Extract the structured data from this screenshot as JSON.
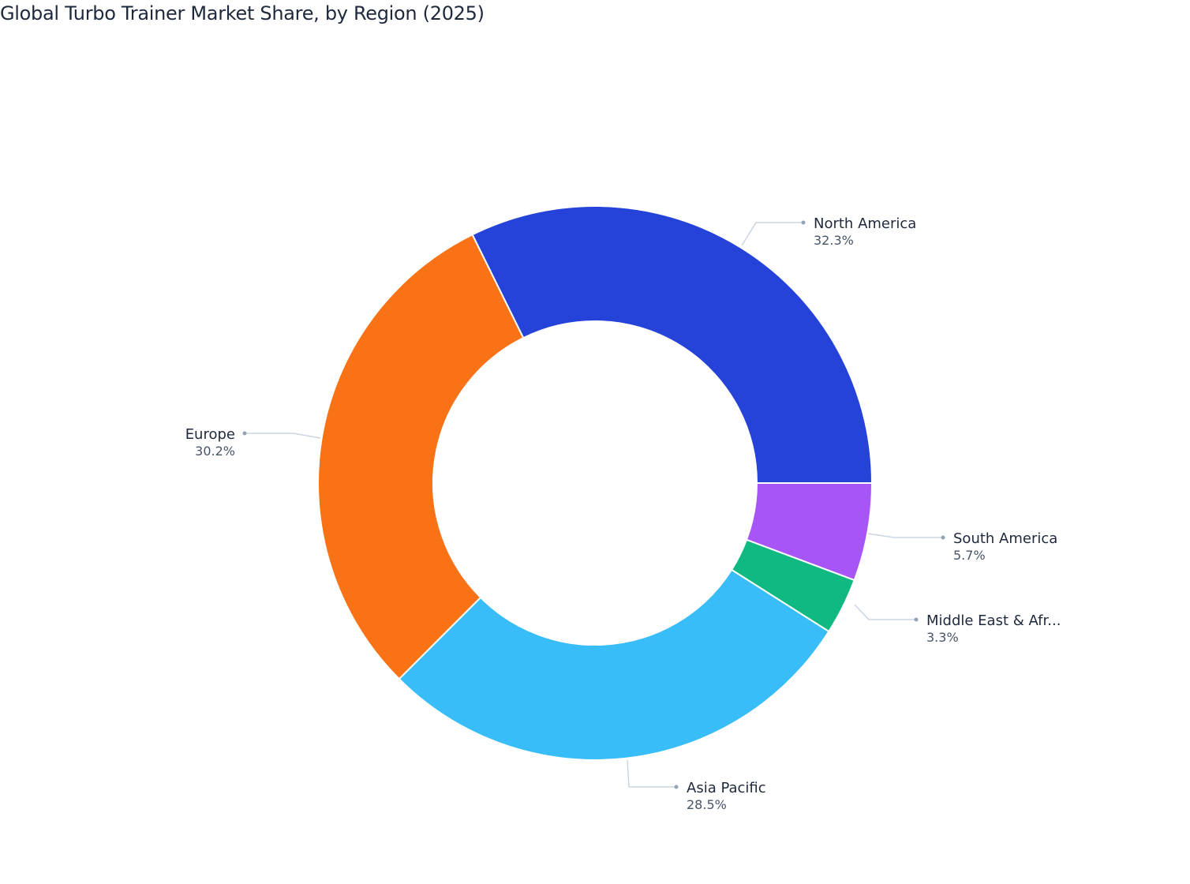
{
  "chart_data": {
    "type": "pie",
    "hole": true,
    "title": "Global Turbo Trainer Market Share, by Region (2025)",
    "categories": [
      "North America",
      "South America",
      "Middle East & Afr...",
      "Asia Pacific",
      "Europe"
    ],
    "values": [
      32.3,
      5.7,
      3.3,
      28.5,
      30.2
    ],
    "value_labels": [
      "32.3%",
      "5.7%",
      "3.3%",
      "28.5%",
      "30.2%"
    ],
    "colors": [
      "#2643d9",
      "#a855f7",
      "#10b981",
      "#38bdf8",
      "#f97316"
    ],
    "direction": "clockwise",
    "legend": "none"
  }
}
